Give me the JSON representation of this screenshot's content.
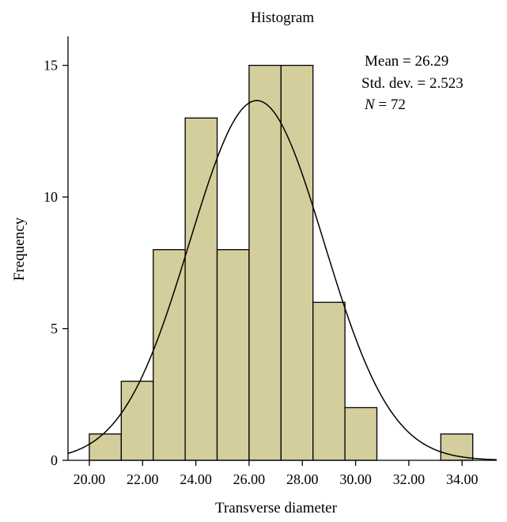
{
  "chart_data": {
    "type": "bar",
    "title": "Histogram",
    "xlabel": "Transverse diameter",
    "ylabel": "Frequency",
    "bins": [
      {
        "start": 20.0,
        "end": 21.2,
        "count": 1
      },
      {
        "start": 21.2,
        "end": 22.4,
        "count": 3
      },
      {
        "start": 22.4,
        "end": 23.6,
        "count": 8
      },
      {
        "start": 23.6,
        "end": 24.8,
        "count": 13
      },
      {
        "start": 24.8,
        "end": 26.0,
        "count": 8
      },
      {
        "start": 26.0,
        "end": 27.2,
        "count": 15
      },
      {
        "start": 27.2,
        "end": 28.4,
        "count": 15
      },
      {
        "start": 28.4,
        "end": 29.6,
        "count": 6
      },
      {
        "start": 29.6,
        "end": 30.8,
        "count": 2
      },
      {
        "start": 30.8,
        "end": 32.0,
        "count": 0
      },
      {
        "start": 32.0,
        "end": 33.2,
        "count": 0
      },
      {
        "start": 33.2,
        "end": 34.4,
        "count": 1
      }
    ],
    "x_ticks": [
      "20.00",
      "22.00",
      "24.00",
      "26.00",
      "28.00",
      "30.00",
      "32.00",
      "34.00"
    ],
    "y_ticks": [
      "0",
      "5",
      "10",
      "15"
    ],
    "xlim": [
      19.2,
      35.3
    ],
    "ylim": [
      0,
      16.1
    ],
    "normal_curve": {
      "mean": 26.29,
      "std_dev": 2.523,
      "n": 72,
      "bin_width": 1.2
    },
    "stats": {
      "mean_label": "Mean = 26.29",
      "std_label": "Std. dev. = 2.523",
      "n_label_italic": "N",
      "n_label_rest": " = 72"
    },
    "colors": {
      "bar_fill": "#d4ce9c",
      "bar_stroke": "#000000",
      "curve": "#000000"
    },
    "grid": false,
    "legend": "none"
  }
}
